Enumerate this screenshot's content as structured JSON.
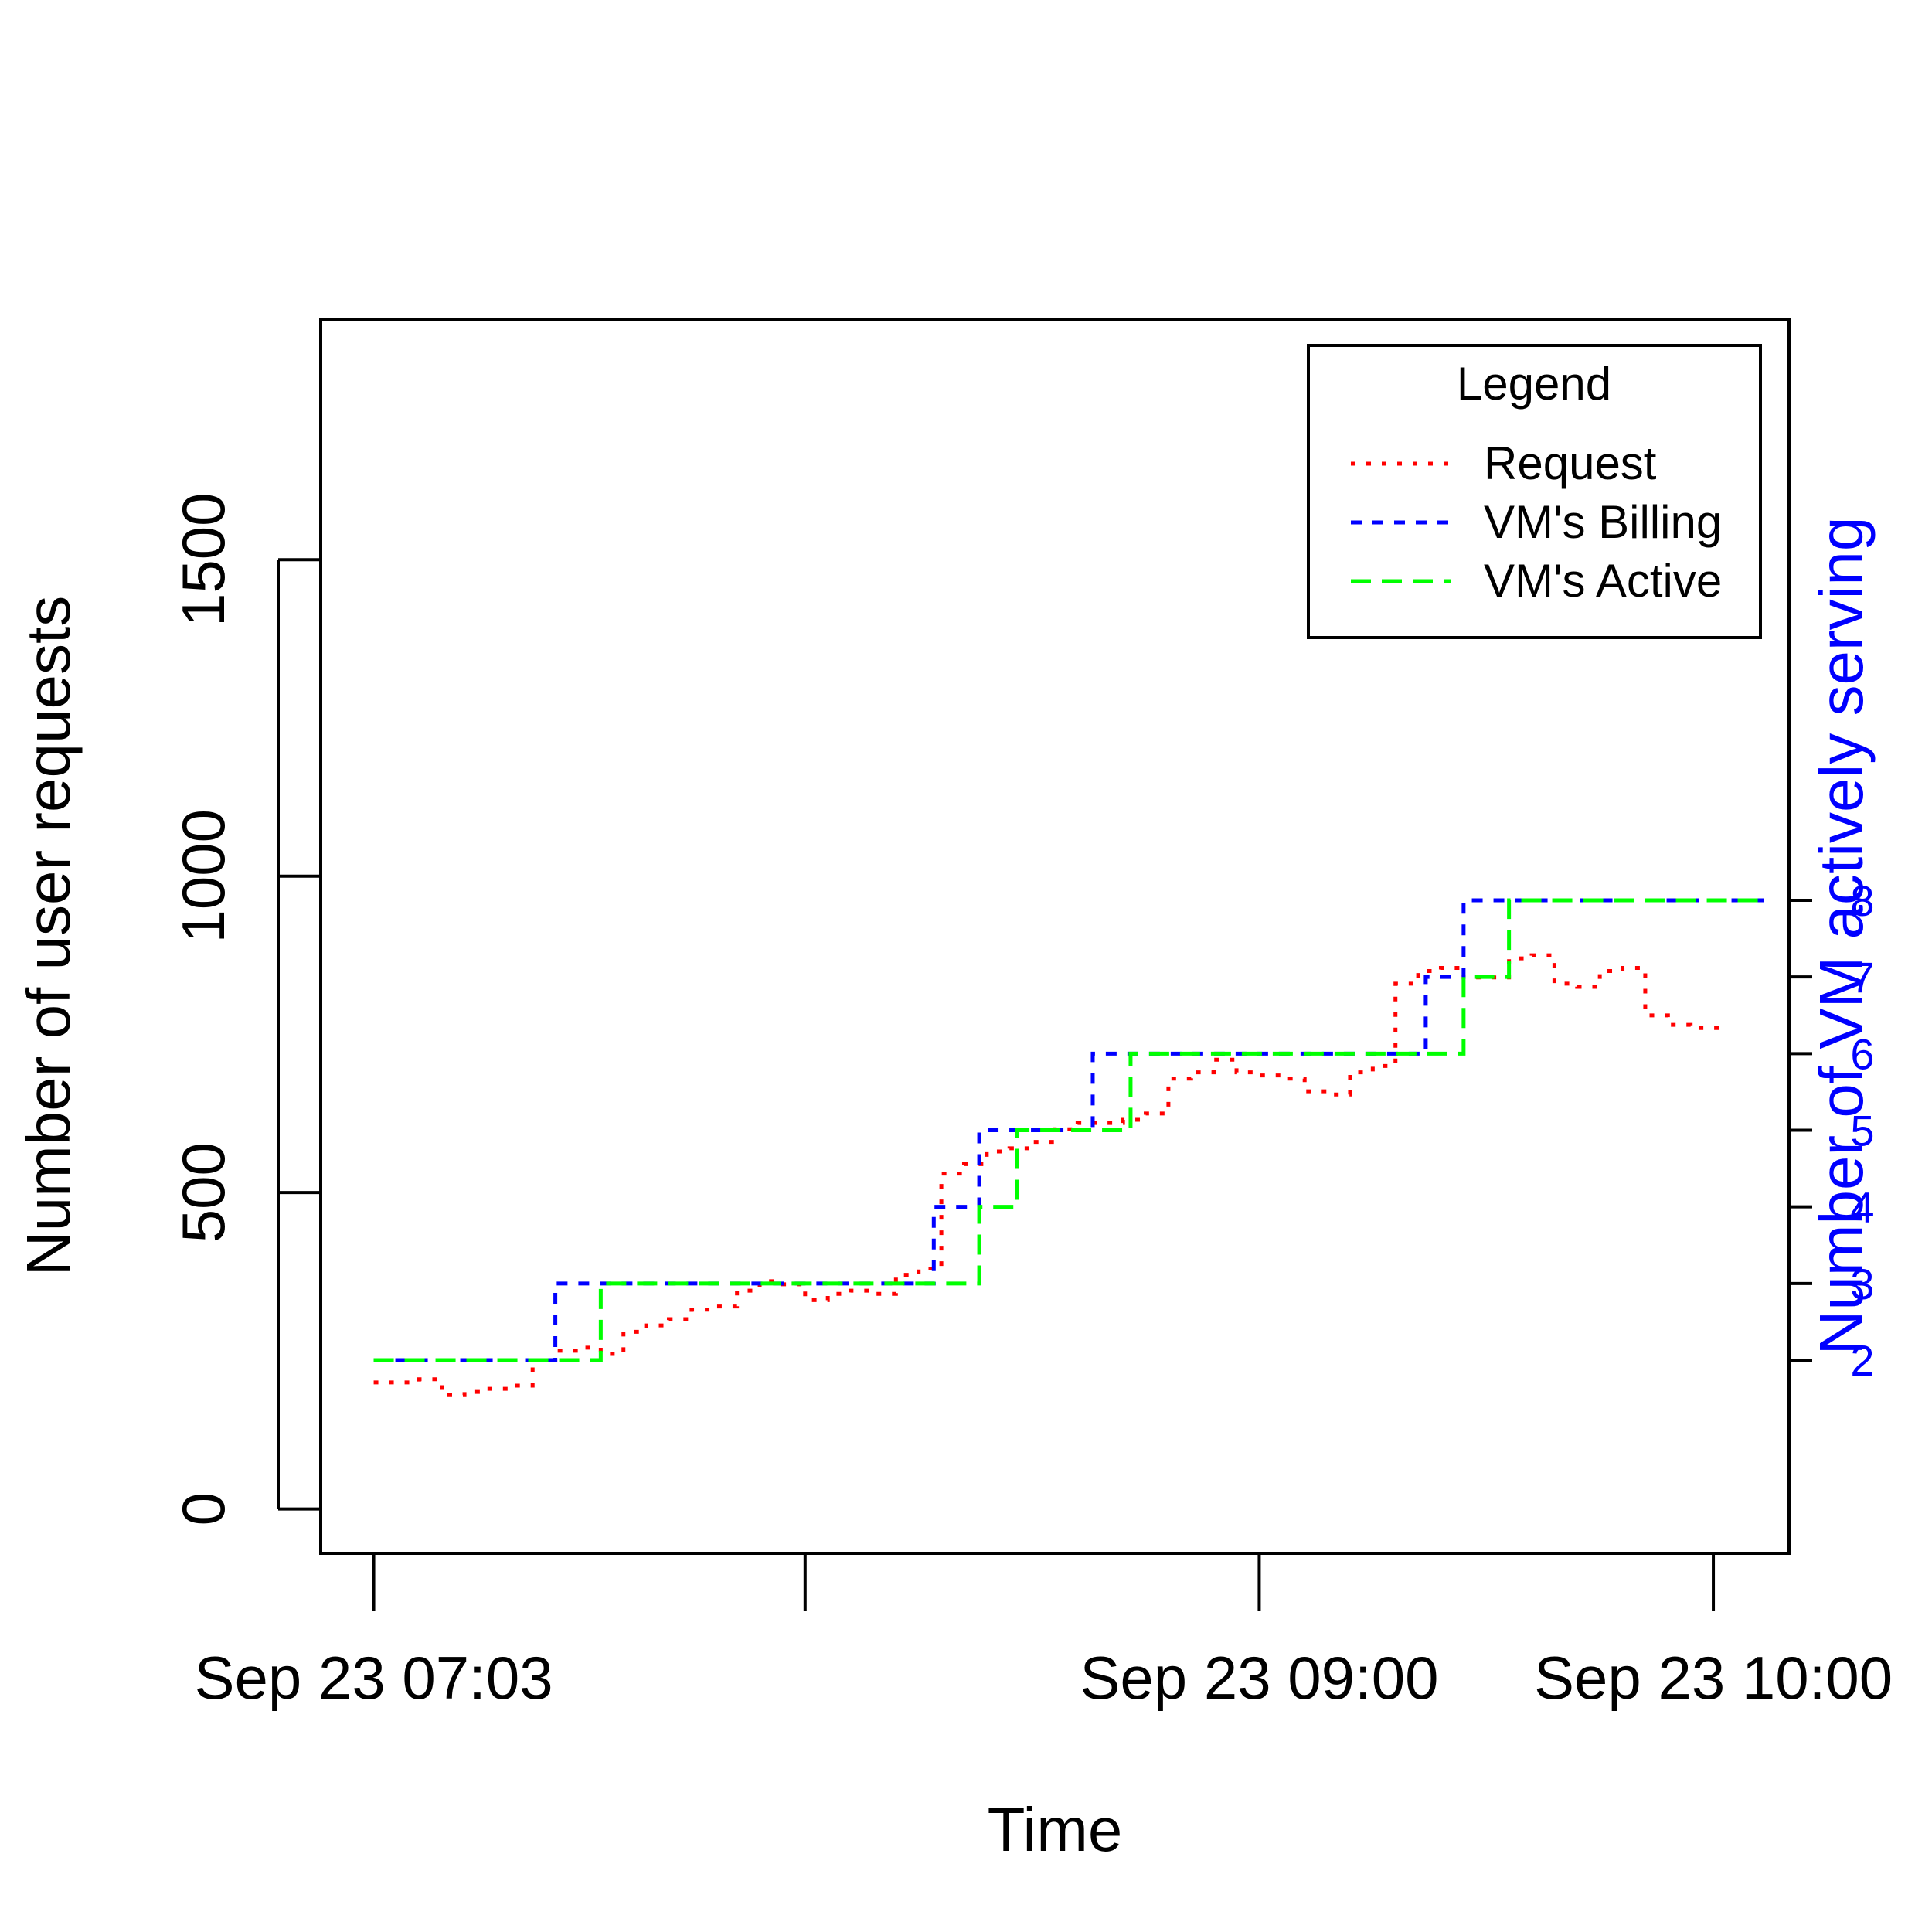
{
  "chart_data": {
    "type": "line",
    "xlabel": "Time",
    "ylabel": "Number of user requests",
    "y2label": "Number of VM actively serving",
    "x_unit": "minutes after 07:03 on Sep 23",
    "xlim": [
      -7,
      187
    ],
    "ylim": [
      -70,
      1880
    ],
    "y2lim": [
      2,
      8
    ],
    "x_ticks": [
      {
        "x": 0,
        "label": "Sep 23 07:03"
      },
      {
        "x": 57,
        "label": ""
      },
      {
        "x": 117,
        "label": "Sep 23 09:00"
      },
      {
        "x": 177,
        "label": "Sep 23 10:00"
      }
    ],
    "y_ticks": [
      {
        "y": 0,
        "label": "0"
      },
      {
        "y": 500,
        "label": "500"
      },
      {
        "y": 1000,
        "label": "1000"
      },
      {
        "y": 1500,
        "label": "1500"
      }
    ],
    "y2_ticks": [
      {
        "y": 2,
        "label": "2"
      },
      {
        "y": 3,
        "label": "3"
      },
      {
        "y": 4,
        "label": "4"
      },
      {
        "y": 5,
        "label": "5"
      },
      {
        "y": 6,
        "label": "6"
      },
      {
        "y": 7,
        "label": "7"
      },
      {
        "y": 8,
        "label": "8"
      }
    ],
    "legend": {
      "title": "Legend",
      "position": "top-right",
      "entries": [
        {
          "label": "Request",
          "color": "#ff0000",
          "dash": "dotted"
        },
        {
          "label": "VM's Billing",
          "color": "#0000ff",
          "dash": "dashed"
        },
        {
          "label": "VM's Active",
          "color": "#00ff00",
          "dash": "longdash"
        }
      ]
    },
    "series": [
      {
        "name": "Request",
        "axis": "left",
        "color": "#ff0000",
        "step": true,
        "x": [
          0,
          3,
          6,
          9,
          12,
          15,
          18,
          21,
          24,
          27,
          30,
          33,
          36,
          39,
          42,
          45,
          48,
          51,
          54,
          57,
          60,
          63,
          66,
          69,
          72,
          75,
          78,
          81,
          84,
          87,
          90,
          93,
          96,
          99,
          102,
          105,
          108,
          111,
          114,
          117,
          120,
          123,
          126,
          129,
          132,
          135,
          138,
          141,
          144,
          147,
          150,
          153,
          156,
          159,
          162,
          165,
          168,
          171,
          174,
          177,
          179
        ],
        "y": [
          200,
          200,
          205,
          180,
          185,
          190,
          195,
          235,
          250,
          255,
          245,
          280,
          290,
          300,
          315,
          320,
          345,
          360,
          355,
          330,
          340,
          345,
          340,
          370,
          380,
          530,
          545,
          565,
          570,
          580,
          600,
          610,
          610,
          615,
          625,
          680,
          690,
          710,
          690,
          685,
          680,
          660,
          655,
          690,
          700,
          830,
          850,
          855,
          840,
          840,
          870,
          875,
          830,
          825,
          850,
          855,
          780,
          765,
          760,
          760,
          760
        ]
      },
      {
        "name": "VM's Billing",
        "axis": "right",
        "color": "#0000ff",
        "step": true,
        "x": [
          0,
          24,
          74,
          80,
          95,
          139,
          144,
          184
        ],
        "y": [
          2,
          3,
          4,
          5,
          6,
          7,
          8,
          8
        ]
      },
      {
        "name": "VM's Active",
        "axis": "right",
        "color": "#00ff00",
        "step": true,
        "x": [
          0,
          30,
          80,
          85,
          100,
          144,
          150,
          184
        ],
        "y": [
          2,
          3,
          4,
          5,
          6,
          7,
          8,
          8
        ]
      }
    ]
  }
}
